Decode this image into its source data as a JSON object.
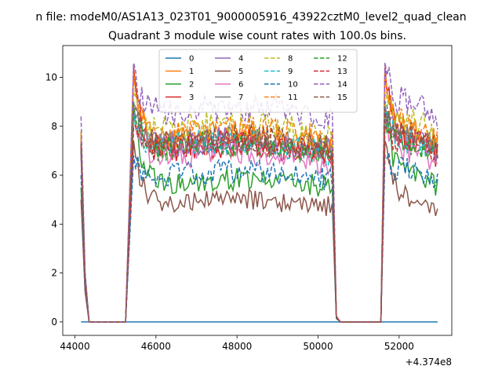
{
  "figure": {
    "suptitle": "n file: modeM0/AS1A13_023T01_9000005916_43922cztM0_level2_quad_clean",
    "x_offset_label": "+4.374e8"
  },
  "chart_data": {
    "type": "line",
    "title": "Quadrant 3 module wise count rates with 100.0s bins.",
    "xlabel": "",
    "ylabel": "",
    "x_offset": 437400000,
    "xlim": [
      43700,
      53300
    ],
    "ylim": [
      -0.55,
      11.3
    ],
    "xticks": [
      44000,
      46000,
      48000,
      50000,
      52000
    ],
    "xtick_labels": [
      "44000",
      "46000",
      "48000",
      "50000",
      "52000"
    ],
    "yticks": [
      0,
      2,
      4,
      6,
      8,
      10
    ],
    "ytick_labels": [
      "0",
      "2",
      "4",
      "6",
      "8",
      "10"
    ],
    "grid": false,
    "legend_position": "upper center",
    "legend_columns": 4,
    "time_segments": [
      {
        "start": 44150,
        "end": 44350,
        "kind": "onset"
      },
      {
        "start": 44350,
        "end": 45250,
        "kind": "gap"
      },
      {
        "start": 45250,
        "end": 45450,
        "kind": "rise"
      },
      {
        "start": 45450,
        "end": 50350,
        "kind": "on"
      },
      {
        "start": 50350,
        "end": 50550,
        "kind": "fall"
      },
      {
        "start": 50550,
        "end": 51550,
        "kind": "gap"
      },
      {
        "start": 51550,
        "end": 51650,
        "kind": "rise"
      },
      {
        "start": 51650,
        "end": 52950,
        "kind": "on"
      }
    ],
    "series": [
      {
        "name": "0",
        "color": "#1f77b4",
        "dashed": false,
        "level": 0.0,
        "peak": 0.0,
        "start": 0.0
      },
      {
        "name": "1",
        "color": "#ff7f0e",
        "dashed": false,
        "level": 7.2,
        "peak": 10.3,
        "start": 7.6
      },
      {
        "name": "2",
        "color": "#2ca02c",
        "dashed": false,
        "level": 5.5,
        "peak": 8.6,
        "start": 5.5
      },
      {
        "name": "3",
        "color": "#d62728",
        "dashed": false,
        "level": 6.8,
        "peak": 10.4,
        "start": 7.1
      },
      {
        "name": "4",
        "color": "#9467bd",
        "dashed": false,
        "level": 7.0,
        "peak": 8.9,
        "start": 7.5
      },
      {
        "name": "5",
        "color": "#8c564b",
        "dashed": false,
        "level": 4.7,
        "peak": 7.4,
        "start": 5.0
      },
      {
        "name": "6",
        "color": "#e377c2",
        "dashed": false,
        "level": 6.5,
        "peak": 8.6,
        "start": 6.8
      },
      {
        "name": "7",
        "color": "#7f7f7f",
        "dashed": false,
        "level": 7.0,
        "peak": 8.8,
        "start": 7.2
      },
      {
        "name": "8",
        "color": "#bcbd22",
        "dashed": true,
        "level": 7.6,
        "peak": 9.4,
        "start": 7.8
      },
      {
        "name": "9",
        "color": "#17becf",
        "dashed": true,
        "level": 6.9,
        "peak": 8.7,
        "start": 7.0
      },
      {
        "name": "10",
        "color": "#1f77b4",
        "dashed": true,
        "level": 5.8,
        "peak": 6.8,
        "start": 6.0
      },
      {
        "name": "11",
        "color": "#ff7f0e",
        "dashed": true,
        "level": 7.4,
        "peak": 10.2,
        "start": 7.7
      },
      {
        "name": "12",
        "color": "#2ca02c",
        "dashed": true,
        "level": 6.8,
        "peak": 9.0,
        "start": 7.0
      },
      {
        "name": "13",
        "color": "#d62728",
        "dashed": true,
        "level": 6.9,
        "peak": 8.0,
        "start": 7.2
      },
      {
        "name": "14",
        "color": "#9467bd",
        "dashed": true,
        "level": 8.3,
        "peak": 10.6,
        "start": 8.4
      },
      {
        "name": "15",
        "color": "#8c564b",
        "dashed": true,
        "level": 7.1,
        "peak": 8.7,
        "start": 7.3
      }
    ]
  }
}
